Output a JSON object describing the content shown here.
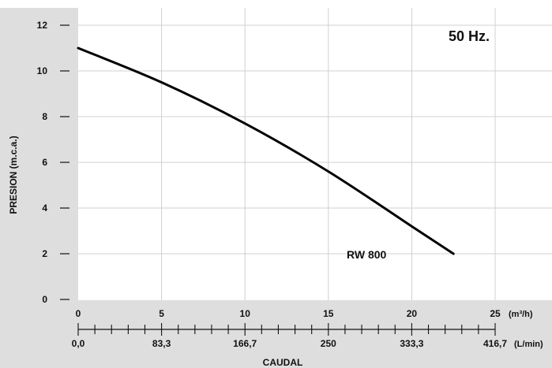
{
  "chart_data": {
    "type": "line",
    "title": "",
    "annotation_top_right": "50 Hz.",
    "ylabel": "PRESION (m.c.a.)",
    "xlabel": "CAUDAL",
    "ylim": [
      0,
      12
    ],
    "xlim": [
      0,
      25
    ],
    "y_ticks": [
      "0",
      "2",
      "4",
      "6",
      "8",
      "10",
      "12"
    ],
    "x_ticks_primary": [
      "0",
      "5",
      "10",
      "15",
      "20",
      "25"
    ],
    "x_unit_primary": "(m³/h)",
    "x_ticks_secondary": [
      "0,0",
      "83,3",
      "166,7",
      "250",
      "333,3",
      "416,7"
    ],
    "x_unit_secondary": "(L/min)",
    "grid": true,
    "series": [
      {
        "name": "RW 800",
        "x": [
          0,
          5,
          10,
          15,
          20,
          22.5
        ],
        "y": [
          11.0,
          9.5,
          7.7,
          5.6,
          3.2,
          2.0
        ]
      }
    ],
    "colors": {
      "plot_background": "#ffffff",
      "frame_background": "#dedede",
      "grid": "#d0d0d0",
      "line": "#000000"
    }
  }
}
